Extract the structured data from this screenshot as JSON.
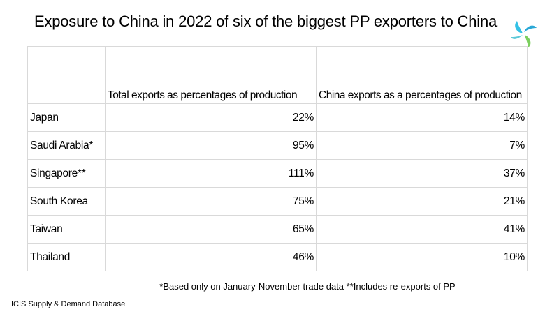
{
  "title": "Exposure to China in 2022 of  six of the biggest PP exporters to China",
  "logo": {
    "icon": "icis-logo-icon",
    "colors": [
      "#33c1e6",
      "#2aa8d6",
      "#7ccf5f"
    ]
  },
  "table": {
    "headers": [
      "",
      "Total exports as percentages of production",
      "China exports as a percentages of production"
    ],
    "rows": [
      {
        "country": "Japan",
        "total": "22%",
        "china": "14%"
      },
      {
        "country": "Saudi Arabia*",
        "total": "95%",
        "china": "7%"
      },
      {
        "country": "Singapore**",
        "total": "111%",
        "china": "37%"
      },
      {
        "country": "South Korea",
        "total": "75%",
        "china": "21%"
      },
      {
        "country": "Taiwan",
        "total": "65%",
        "china": "41%"
      },
      {
        "country": "Thailand",
        "total": "46%",
        "china": "10%"
      }
    ]
  },
  "footnote": "*Based only on January-November trade data   **Includes re-exports of PP",
  "source": "ICIS Supply  & Demand Database"
}
